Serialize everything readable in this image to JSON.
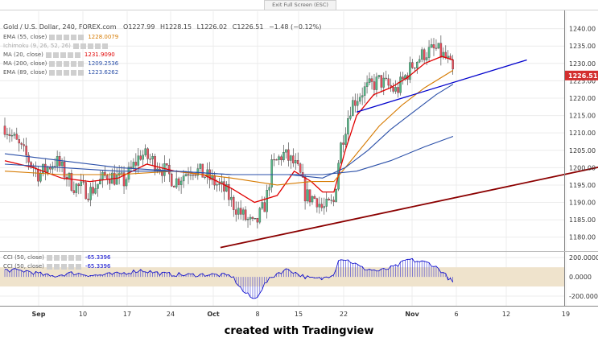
{
  "header": {
    "symbol": "Gold / U.S. Dollar, 240, FOREX.com",
    "open": "O1227.99",
    "high": "H1228.15",
    "low": "L1226.02",
    "close": "C1226.51",
    "change": "−1.48 (−0.12%)",
    "exit_fullscreen": "Exit Full Screen (ESC)"
  },
  "legend": [
    {
      "label": "EMA (55, close)",
      "value": "1228.0079",
      "color": "#d67a00"
    },
    {
      "label": "Ichimoku (9, 26, 52, 26)",
      "value": "",
      "color": "#999999"
    },
    {
      "label": "MA (20, close)",
      "value": "1231.9090",
      "color": "#e00000"
    },
    {
      "label": "MA (200, close)",
      "value": "1209.2536",
      "color": "#2a4fa8"
    },
    {
      "label": "EMA (89, close)",
      "value": "1223.6262",
      "color": "#2a4fa8"
    }
  ],
  "cci_legend": [
    {
      "label": "CCI (50, close)",
      "value": "-65.3396"
    },
    {
      "label": "CCI (50, close)",
      "value": "-65.3396"
    }
  ],
  "current_price": "1226.51",
  "caption": "created with Tradingview",
  "colors": {
    "up": "#53b987",
    "down": "#eb4d5c",
    "ma20": "#e00000",
    "ema55": "#d67a00",
    "ema89": "#2a4fa8",
    "ma200": "#2a4fa8",
    "support": "#8b0000",
    "channel": "#0000cc",
    "cci": "#0000cc",
    "cci_band": "#efe3cc",
    "price_label": "#d32f2f"
  },
  "chart_data": {
    "type": "line",
    "title": "Gold / U.S. Dollar, 240, FOREX.com",
    "x_tick_labels": [
      "Sep",
      "10",
      "17",
      "24",
      "Oct",
      "8",
      "15",
      "22",
      "Nov",
      "6",
      "12",
      "19"
    ],
    "y_tick_labels": [
      "1180.00",
      "1185.00",
      "1190.00",
      "1195.00",
      "1200.00",
      "1205.00",
      "1210.00",
      "1215.00",
      "1220.00",
      "1225.00",
      "1230.00",
      "1235.00",
      "1240.00"
    ],
    "ylim": [
      1176,
      1245
    ],
    "cci_tick_labels": [
      "200.0000",
      "0.0000",
      "-200.0000"
    ],
    "cci_ylim": [
      -300,
      260
    ],
    "cci_band": [
      -100,
      100
    ],
    "price_path": [
      [
        0,
        1212
      ],
      [
        3,
        1205
      ],
      [
        6,
        1198
      ],
      [
        9,
        1202
      ],
      [
        12,
        1195
      ],
      [
        15,
        1193
      ],
      [
        18,
        1198
      ],
      [
        21,
        1196
      ],
      [
        24,
        1204
      ],
      [
        27,
        1201
      ],
      [
        30,
        1196
      ],
      [
        33,
        1200
      ],
      [
        36,
        1197
      ],
      [
        39,
        1193
      ],
      [
        40,
        1190
      ],
      [
        42,
        1186
      ],
      [
        44,
        1183
      ],
      [
        46,
        1190
      ],
      [
        47,
        1200
      ],
      [
        49,
        1204
      ],
      [
        51,
        1201
      ],
      [
        52,
        1198
      ],
      [
        53,
        1192
      ],
      [
        55,
        1191
      ],
      [
        56,
        1188
      ],
      [
        58,
        1190
      ],
      [
        59,
        1205
      ],
      [
        61,
        1218
      ],
      [
        63,
        1222
      ],
      [
        66,
        1225
      ],
      [
        69,
        1222
      ],
      [
        72,
        1230
      ],
      [
        74,
        1233
      ],
      [
        76,
        1234
      ],
      [
        78,
        1231
      ],
      [
        79,
        1227
      ]
    ],
    "series": [
      {
        "name": "MA (20, close)",
        "points": [
          [
            0,
            1202
          ],
          [
            5,
            1200
          ],
          [
            10,
            1197
          ],
          [
            15,
            1196
          ],
          [
            20,
            1197
          ],
          [
            25,
            1201
          ],
          [
            30,
            1199
          ],
          [
            35,
            1198
          ],
          [
            40,
            1194
          ],
          [
            44,
            1190
          ],
          [
            48,
            1192
          ],
          [
            51,
            1199
          ],
          [
            54,
            1196
          ],
          [
            56,
            1193
          ],
          [
            58,
            1193
          ],
          [
            60,
            1205
          ],
          [
            62,
            1215
          ],
          [
            65,
            1221
          ],
          [
            68,
            1223
          ],
          [
            71,
            1226
          ],
          [
            74,
            1230
          ],
          [
            77,
            1232
          ],
          [
            79,
            1231
          ]
        ]
      },
      {
        "name": "EMA (55, close)",
        "points": [
          [
            0,
            1199
          ],
          [
            10,
            1198
          ],
          [
            20,
            1198
          ],
          [
            30,
            1199
          ],
          [
            40,
            1197
          ],
          [
            48,
            1195
          ],
          [
            54,
            1196
          ],
          [
            58,
            1196
          ],
          [
            62,
            1204
          ],
          [
            66,
            1212
          ],
          [
            70,
            1218
          ],
          [
            74,
            1223
          ],
          [
            79,
            1228
          ]
        ]
      },
      {
        "name": "EMA (89, close)",
        "points": [
          [
            0,
            1201
          ],
          [
            10,
            1200
          ],
          [
            20,
            1199
          ],
          [
            30,
            1199
          ],
          [
            40,
            1198
          ],
          [
            50,
            1198
          ],
          [
            56,
            1197
          ],
          [
            60,
            1200
          ],
          [
            64,
            1205
          ],
          [
            68,
            1211
          ],
          [
            72,
            1216
          ],
          [
            76,
            1221
          ],
          [
            79,
            1224
          ]
        ]
      },
      {
        "name": "MA (200, close)",
        "points": [
          [
            0,
            1204
          ],
          [
            10,
            1202
          ],
          [
            20,
            1200
          ],
          [
            30,
            1199
          ],
          [
            40,
            1198
          ],
          [
            50,
            1198
          ],
          [
            56,
            1198
          ],
          [
            62,
            1199
          ],
          [
            68,
            1202
          ],
          [
            74,
            1206
          ],
          [
            79,
            1209
          ]
        ]
      }
    ],
    "trendlines": [
      {
        "name": "support",
        "from": [
          38,
          1177
        ],
        "to": [
          110,
          1202
        ]
      },
      {
        "name": "channel",
        "from": [
          62,
          1216
        ],
        "to": [
          92,
          1231
        ]
      }
    ],
    "cci_path": [
      [
        0,
        70
      ],
      [
        4,
        60
      ],
      [
        8,
        5
      ],
      [
        12,
        40
      ],
      [
        16,
        15
      ],
      [
        20,
        30
      ],
      [
        24,
        70
      ],
      [
        28,
        30
      ],
      [
        32,
        20
      ],
      [
        36,
        25
      ],
      [
        40,
        10
      ],
      [
        42,
        -150
      ],
      [
        44,
        -240
      ],
      [
        46,
        -60
      ],
      [
        48,
        40
      ],
      [
        50,
        80
      ],
      [
        52,
        20
      ],
      [
        54,
        -20
      ],
      [
        56,
        -20
      ],
      [
        58,
        40
      ],
      [
        59,
        200
      ],
      [
        61,
        160
      ],
      [
        63,
        90
      ],
      [
        66,
        60
      ],
      [
        69,
        110
      ],
      [
        71,
        180
      ],
      [
        73,
        160
      ],
      [
        75,
        140
      ],
      [
        77,
        60
      ],
      [
        79,
        -65
      ]
    ]
  }
}
